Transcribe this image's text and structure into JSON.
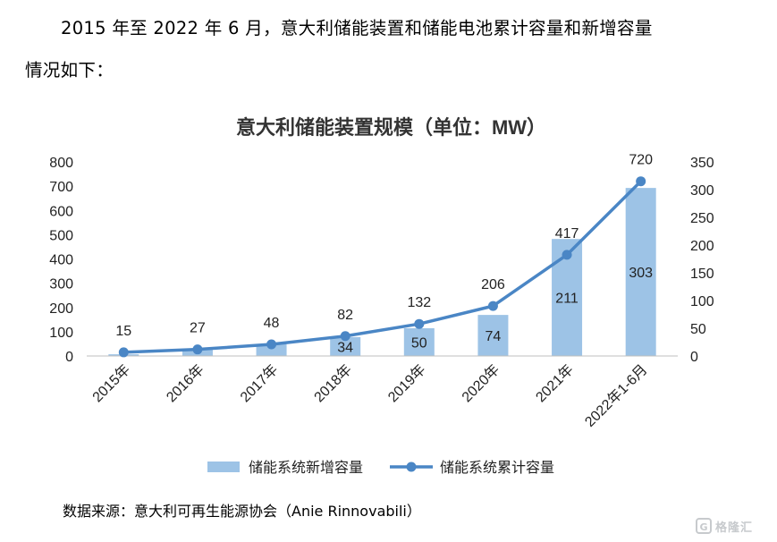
{
  "intro": {
    "line1": "2015 年至 2022 年 6 月，意大利储能装置和储能电池累计容量和新增容量",
    "line2": "情况如下："
  },
  "source": "数据来源：意大利可再生能源协会（Anie Rinnovabili）",
  "watermark": {
    "mark": "G",
    "text": "格隆汇"
  },
  "chart_data": {
    "type": "bar",
    "title": "意大利储能装置规模（单位：MW）",
    "categories": [
      "2015年",
      "2016年",
      "2017年",
      "2018年",
      "2019年",
      "2020年",
      "2021年",
      "2022年1-6月"
    ],
    "series": [
      {
        "name": "储能系统新增容量",
        "type": "bar",
        "axis": "right",
        "color": "#9DC3E6",
        "values": [
          3,
          12,
          21,
          34,
          50,
          74,
          211,
          303
        ],
        "labels": [
          "",
          "",
          "",
          "34",
          "50",
          "74",
          "211",
          "303"
        ]
      },
      {
        "name": "储能系统累计容量",
        "type": "line",
        "axis": "left",
        "color": "#4A86C5",
        "values": [
          15,
          27,
          48,
          82,
          132,
          206,
          417,
          720
        ],
        "labels": [
          "15",
          "27",
          "48",
          "82",
          "132",
          "206",
          "417",
          "720"
        ]
      }
    ],
    "yleft": {
      "min": 0,
      "max": 800,
      "ticks": [
        "0",
        "100",
        "200",
        "300",
        "400",
        "500",
        "600",
        "700",
        "800"
      ]
    },
    "yright": {
      "min": 0,
      "max": 350,
      "ticks": [
        "0",
        "50",
        "100",
        "150",
        "200",
        "250",
        "300",
        "350"
      ]
    },
    "grid": false,
    "legend": "bottom"
  }
}
